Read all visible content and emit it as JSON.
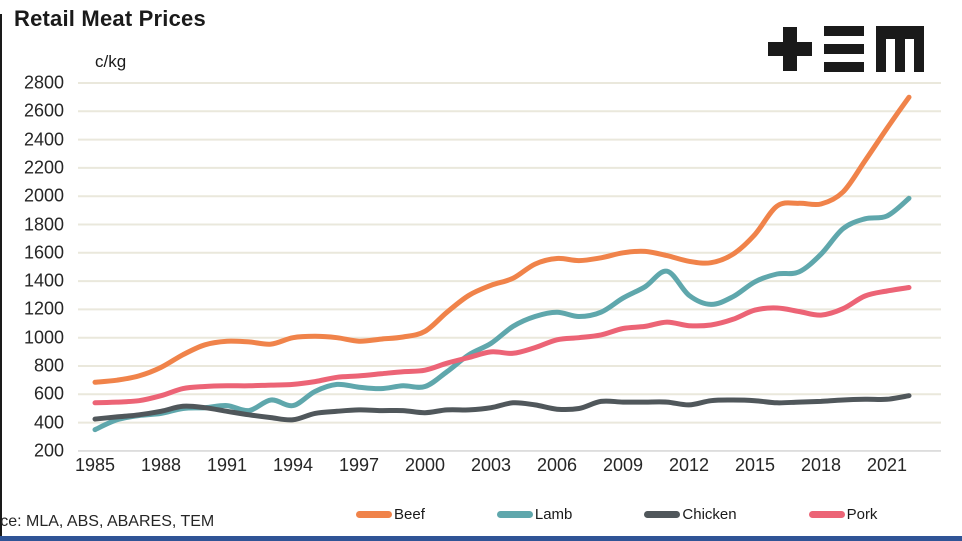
{
  "header": {
    "title": "Retail Meat Prices"
  },
  "logo": {
    "name": "TEM",
    "color": "#1a1a1a"
  },
  "footer": {
    "source": "urce: MLA, ABS, ABARES, TEM",
    "accent_bar_color": "#2F5496"
  },
  "style": {
    "grid_color": "#eae8dc",
    "bottom_grid_color": "#d8d8d8",
    "text_color": "#262626"
  },
  "chart_data": {
    "type": "line",
    "title": "Retail Meat Prices",
    "ylabel": "c/kg",
    "xlabel": "",
    "grid": "horizontal",
    "legend_position": "bottom",
    "ylim": [
      200,
      2800
    ],
    "y_ticks": [
      2800,
      2600,
      2400,
      2200,
      2000,
      1800,
      1600,
      1400,
      1200,
      1000,
      800,
      600,
      400,
      200
    ],
    "x_tick_labels": [
      "1985",
      "1988",
      "1991",
      "1994",
      "1997",
      "2000",
      "2003",
      "2006",
      "2009",
      "2012",
      "2015",
      "2018",
      "2021"
    ],
    "x": [
      1985,
      1986,
      1987,
      1988,
      1989,
      1990,
      1991,
      1992,
      1993,
      1994,
      1995,
      1996,
      1997,
      1998,
      1999,
      2000,
      2001,
      2002,
      2003,
      2004,
      2005,
      2006,
      2007,
      2008,
      2009,
      2010,
      2011,
      2012,
      2013,
      2014,
      2015,
      2016,
      2017,
      2018,
      2019,
      2020,
      2021,
      2022
    ],
    "series": [
      {
        "name": "Beef",
        "color": "#F0834A",
        "values": [
          685,
          700,
          730,
          790,
          880,
          950,
          975,
          970,
          955,
          1000,
          1010,
          1000,
          975,
          990,
          1005,
          1045,
          1180,
          1300,
          1370,
          1420,
          1520,
          1560,
          1545,
          1565,
          1600,
          1610,
          1580,
          1540,
          1530,
          1590,
          1730,
          1930,
          1950,
          1945,
          2030,
          2250,
          2480,
          2700
        ]
      },
      {
        "name": "Lamb",
        "color": "#5FA7AC",
        "values": [
          350,
          420,
          450,
          465,
          500,
          505,
          520,
          485,
          560,
          520,
          620,
          670,
          650,
          640,
          660,
          655,
          760,
          880,
          960,
          1080,
          1150,
          1180,
          1150,
          1180,
          1280,
          1360,
          1470,
          1300,
          1235,
          1290,
          1395,
          1450,
          1465,
          1590,
          1770,
          1840,
          1860,
          1985
        ]
      },
      {
        "name": "Chicken",
        "color": "#50575B",
        "values": [
          425,
          440,
          455,
          480,
          515,
          505,
          480,
          455,
          435,
          420,
          465,
          480,
          490,
          485,
          485,
          470,
          490,
          490,
          505,
          540,
          525,
          495,
          500,
          550,
          545,
          545,
          545,
          525,
          555,
          560,
          555,
          540,
          545,
          550,
          560,
          565,
          565,
          590
        ]
      },
      {
        "name": "Pork",
        "color": "#EC6476",
        "values": [
          540,
          545,
          555,
          590,
          640,
          655,
          660,
          660,
          665,
          670,
          690,
          720,
          730,
          745,
          760,
          770,
          820,
          860,
          900,
          890,
          930,
          985,
          1000,
          1020,
          1065,
          1080,
          1110,
          1085,
          1090,
          1130,
          1195,
          1210,
          1185,
          1160,
          1205,
          1295,
          1330,
          1355
        ]
      }
    ]
  }
}
